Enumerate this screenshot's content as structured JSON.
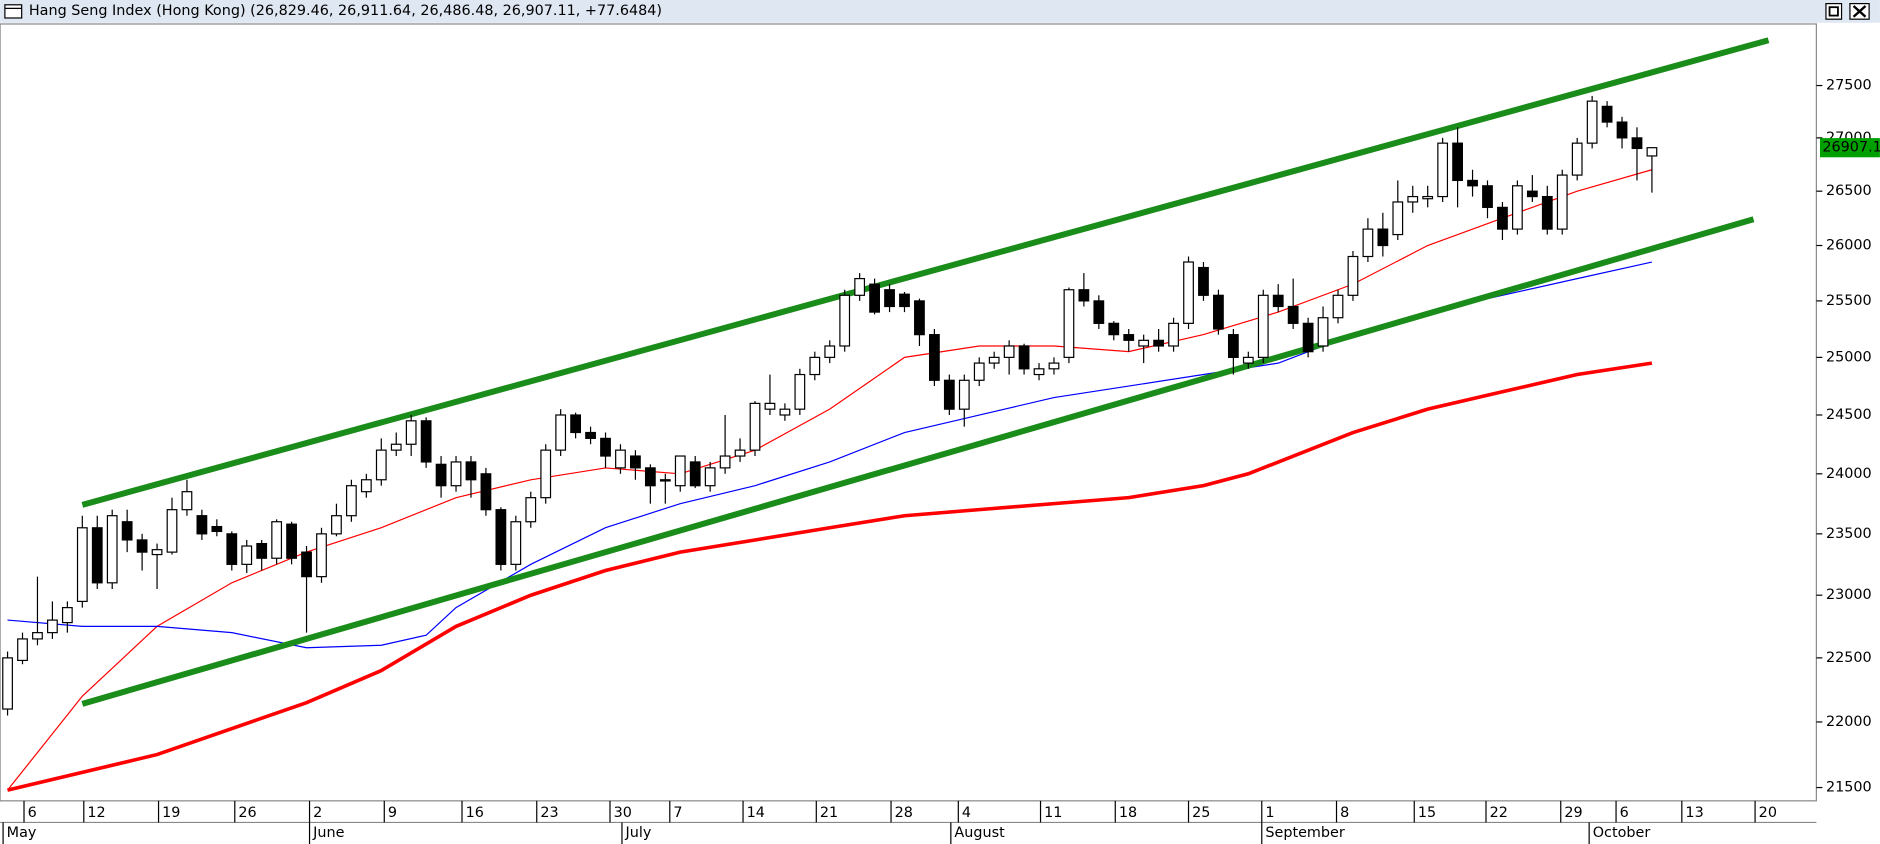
{
  "chart_data": {
    "type": "candlestick",
    "title": "Hang Seng Index (Hong Kong) (26,829.46, 26,911.64, 26,486.48, 26,907.11, +77.6484)",
    "log_scale": true,
    "ylim": [
      21400,
      28100
    ],
    "xlim": [
      -0.5,
      121
    ],
    "yticks": [
      21500,
      22000,
      22500,
      23000,
      23500,
      24000,
      24500,
      25000,
      25500,
      26000,
      26500,
      27000,
      27500
    ],
    "xticks": [
      {
        "value": 1.1,
        "label": "6"
      },
      {
        "value": 5.1,
        "label": "12"
      },
      {
        "value": 10.1,
        "label": "19"
      },
      {
        "value": 15.2,
        "label": "26"
      },
      {
        "value": 20.2,
        "label": "2"
      },
      {
        "value": 25.2,
        "label": "9"
      },
      {
        "value": 30.4,
        "label": "16"
      },
      {
        "value": 35.4,
        "label": "23"
      },
      {
        "value": 40.3,
        "label": "30"
      },
      {
        "value": 44.3,
        "label": "7"
      },
      {
        "value": 49.2,
        "label": "14"
      },
      {
        "value": 54.1,
        "label": "21"
      },
      {
        "value": 59.1,
        "label": "28"
      },
      {
        "value": 63.6,
        "label": "4"
      },
      {
        "value": 69.1,
        "label": "11"
      },
      {
        "value": 74.1,
        "label": "18"
      },
      {
        "value": 79.0,
        "label": "25"
      },
      {
        "value": 83.9,
        "label": "1"
      },
      {
        "value": 88.9,
        "label": "8"
      },
      {
        "value": 94.1,
        "label": "15"
      },
      {
        "value": 98.9,
        "label": "22"
      },
      {
        "value": 103.9,
        "label": "29"
      },
      {
        "value": 107.6,
        "label": "6"
      },
      {
        "value": 112.0,
        "label": "13"
      },
      {
        "value": 116.9,
        "label": "20"
      }
    ],
    "month_ticks": [
      {
        "value": -0.3,
        "label": "May"
      },
      {
        "value": 20.2,
        "label": "June"
      },
      {
        "value": 41.1,
        "label": "July"
      },
      {
        "value": 63.1,
        "label": "August"
      },
      {
        "value": 83.9,
        "label": "September"
      },
      {
        "value": 105.8,
        "label": "October"
      }
    ],
    "up_color": "#ffffff",
    "down_color": "#000000",
    "x": [
      0,
      1,
      2,
      3,
      4,
      5,
      6,
      7,
      8,
      9,
      10,
      11,
      12,
      13,
      14,
      15,
      16,
      17,
      18,
      19,
      20,
      21,
      22,
      23,
      24,
      25,
      26,
      27,
      28,
      29,
      30,
      31,
      32,
      33,
      34,
      35,
      36,
      37,
      38,
      39,
      40,
      41,
      42,
      43,
      44,
      45,
      46,
      47,
      48,
      49,
      50,
      51,
      52,
      53,
      54,
      55,
      56,
      57,
      58,
      59,
      60,
      61,
      62,
      63,
      64,
      65,
      66,
      67,
      68,
      69,
      70,
      71,
      72,
      73,
      74,
      75,
      76,
      77,
      78,
      79,
      80,
      81,
      82,
      83,
      84,
      85,
      86,
      87,
      88,
      89,
      90,
      91,
      92,
      93,
      94,
      95,
      96,
      97,
      98,
      99,
      100,
      101,
      102,
      103,
      104,
      105,
      106,
      107,
      108,
      109,
      110
    ],
    "open": [
      22100,
      22480,
      22650,
      22700,
      22780,
      22950,
      23550,
      23100,
      23600,
      23450,
      23330,
      23350,
      23700,
      23650,
      23560,
      23500,
      23250,
      23420,
      23300,
      23580,
      23350,
      23150,
      23500,
      23650,
      23850,
      23950,
      24200,
      24250,
      24450,
      24080,
      23900,
      24100,
      24000,
      23700,
      23250,
      23600,
      23800,
      24200,
      24500,
      24350,
      24300,
      24050,
      24150,
      24050,
      23950,
      23900,
      24100,
      23900,
      24050,
      24150,
      24200,
      24550,
      24500,
      24550,
      24850,
      25000,
      25100,
      25550,
      25650,
      25600,
      25560,
      25500,
      25200,
      24800,
      24550,
      24800,
      24950,
      25000,
      25100,
      24850,
      24900,
      25000,
      25600,
      25500,
      25300,
      25200,
      25100,
      25150,
      25100,
      25300,
      25800,
      25550,
      25200,
      24950,
      25000,
      25550,
      25450,
      25300,
      25100,
      25350,
      25550,
      25900,
      26150,
      26100,
      26400,
      26430,
      26450,
      26950,
      26600,
      26550,
      26350,
      26150,
      26500,
      26450,
      26150,
      26650,
      26950,
      27300,
      27150,
      27000,
      26829.46
    ],
    "high": [
      22550,
      22700,
      23150,
      22950,
      22950,
      23650,
      23650,
      23700,
      23700,
      23500,
      23420,
      23800,
      23950,
      23700,
      23620,
      23520,
      23450,
      23450,
      23620,
      23600,
      23400,
      23550,
      23750,
      23950,
      24000,
      24300,
      24350,
      24500,
      24480,
      24150,
      24150,
      24150,
      24050,
      23720,
      23650,
      23850,
      24250,
      24550,
      24520,
      24400,
      24350,
      24250,
      24200,
      24080,
      24000,
      24150,
      24150,
      24100,
      24500,
      24300,
      24620,
      24850,
      24600,
      24900,
      25050,
      25150,
      25600,
      25750,
      25700,
      25650,
      25580,
      25520,
      25250,
      24850,
      24850,
      25000,
      25050,
      25150,
      25120,
      24950,
      25000,
      25620,
      25750,
      25550,
      25320,
      25250,
      25200,
      25250,
      25350,
      25900,
      25850,
      25600,
      25250,
      25050,
      25600,
      25650,
      25700,
      25350,
      25450,
      25600,
      25950,
      26250,
      26300,
      26600,
      26550,
      26550,
      27000,
      27100,
      26700,
      26600,
      26400,
      26600,
      26650,
      26550,
      26700,
      27000,
      27400,
      27350,
      27200,
      27100,
      26911.64
    ],
    "low": [
      22050,
      22450,
      22600,
      22650,
      22700,
      22900,
      23050,
      23050,
      23350,
      23200,
      23050,
      23330,
      23650,
      23450,
      23480,
      23200,
      23180,
      23200,
      23250,
      23250,
      22700,
      23100,
      23480,
      23600,
      23800,
      23900,
      24150,
      24150,
      24050,
      23800,
      23850,
      23800,
      23650,
      23200,
      23200,
      23550,
      23750,
      24150,
      24300,
      24250,
      24050,
      24000,
      23950,
      23750,
      23750,
      23850,
      23880,
      23850,
      24000,
      24100,
      24150,
      24500,
      24450,
      24500,
      24800,
      24950,
      25050,
      25500,
      25380,
      25400,
      25400,
      25100,
      24750,
      24500,
      24400,
      24750,
      24900,
      24850,
      24850,
      24800,
      24850,
      24950,
      25450,
      25250,
      25150,
      25050,
      24950,
      25050,
      25050,
      25250,
      25500,
      25200,
      24850,
      24900,
      24950,
      25400,
      25250,
      25000,
      25050,
      25300,
      25500,
      25850,
      25900,
      26050,
      26300,
      26350,
      26400,
      26350,
      26450,
      26250,
      26050,
      26100,
      26400,
      26100,
      26100,
      26600,
      26900,
      27100,
      26900,
      26600,
      26486.48
    ],
    "close": [
      22500,
      22650,
      22700,
      22800,
      22900,
      23550,
      23100,
      23650,
      23450,
      23350,
      23370,
      23700,
      23850,
      23500,
      23520,
      23250,
      23400,
      23300,
      23600,
      23300,
      23150,
      23500,
      23650,
      23900,
      23950,
      24200,
      24250,
      24450,
      24100,
      23900,
      24100,
      23950,
      23700,
      23250,
      23600,
      23800,
      24200,
      24500,
      24350,
      24300,
      24150,
      24200,
      24050,
      23900,
      23950,
      24150,
      23900,
      24050,
      24150,
      24200,
      24600,
      24600,
      24550,
      24850,
      25000,
      25100,
      25550,
      25700,
      25400,
      25450,
      25450,
      25200,
      24800,
      24550,
      24800,
      24950,
      25000,
      25100,
      24900,
      24900,
      24950,
      25600,
      25500,
      25300,
      25200,
      25150,
      25150,
      25100,
      25300,
      25850,
      25550,
      25250,
      25000,
      25000,
      25550,
      25450,
      25300,
      25050,
      25350,
      25550,
      25900,
      26150,
      26000,
      26400,
      26450,
      26450,
      26950,
      26600,
      26550,
      26350,
      26150,
      26550,
      26450,
      26150,
      26650,
      26950,
      27350,
      27150,
      27000,
      26900,
      26907.11
    ],
    "series": [
      {
        "color": "#ff0000",
        "width": 1,
        "x": [
          0,
          5,
          10,
          15,
          20,
          25,
          30,
          35,
          40,
          45,
          50,
          55,
          60,
          65,
          70,
          75,
          80,
          85,
          90,
          95,
          100,
          105,
          110
        ],
        "values": [
          21480,
          22200,
          22750,
          23100,
          23350,
          23550,
          23800,
          23950,
          24050,
          24000,
          24200,
          24550,
          25000,
          25100,
          25100,
          25050,
          25200,
          25400,
          25650,
          26000,
          26250,
          26500,
          26700
        ]
      },
      {
        "color": "#0000ff",
        "width": 1,
        "x": [
          0,
          5,
          10,
          15,
          20,
          25,
          28,
          30,
          35,
          40,
          45,
          50,
          55,
          60,
          65,
          70,
          75,
          80,
          85,
          90,
          95,
          100,
          105,
          110
        ],
        "values": [
          22800,
          22750,
          22750,
          22700,
          22580,
          22600,
          22680,
          22900,
          23250,
          23550,
          23750,
          23900,
          24100,
          24350,
          24500,
          24650,
          24750,
          24850,
          24950,
          25200,
          25400,
          25550,
          25700,
          25850
        ]
      },
      {
        "color": "#ff0000",
        "width": 3,
        "x": [
          0,
          10,
          20,
          25,
          30,
          35,
          40,
          45,
          50,
          55,
          60,
          65,
          70,
          75,
          80,
          83,
          90,
          95,
          100,
          105,
          110
        ],
        "values": [
          21480,
          21750,
          22150,
          22400,
          22750,
          23000,
          23200,
          23350,
          23450,
          23550,
          23650,
          23700,
          23750,
          23800,
          23900,
          24000,
          24350,
          24550,
          24700,
          24850,
          24950
        ]
      },
      {
        "color": "#1a8c1a",
        "width": 5,
        "x": [
          5,
          117.8
        ],
        "values": [
          23740,
          27940
        ]
      },
      {
        "color": "#1a8c1a",
        "width": 5,
        "x": [
          5,
          116.8
        ],
        "values": [
          22140,
          26240
        ]
      }
    ]
  }
}
